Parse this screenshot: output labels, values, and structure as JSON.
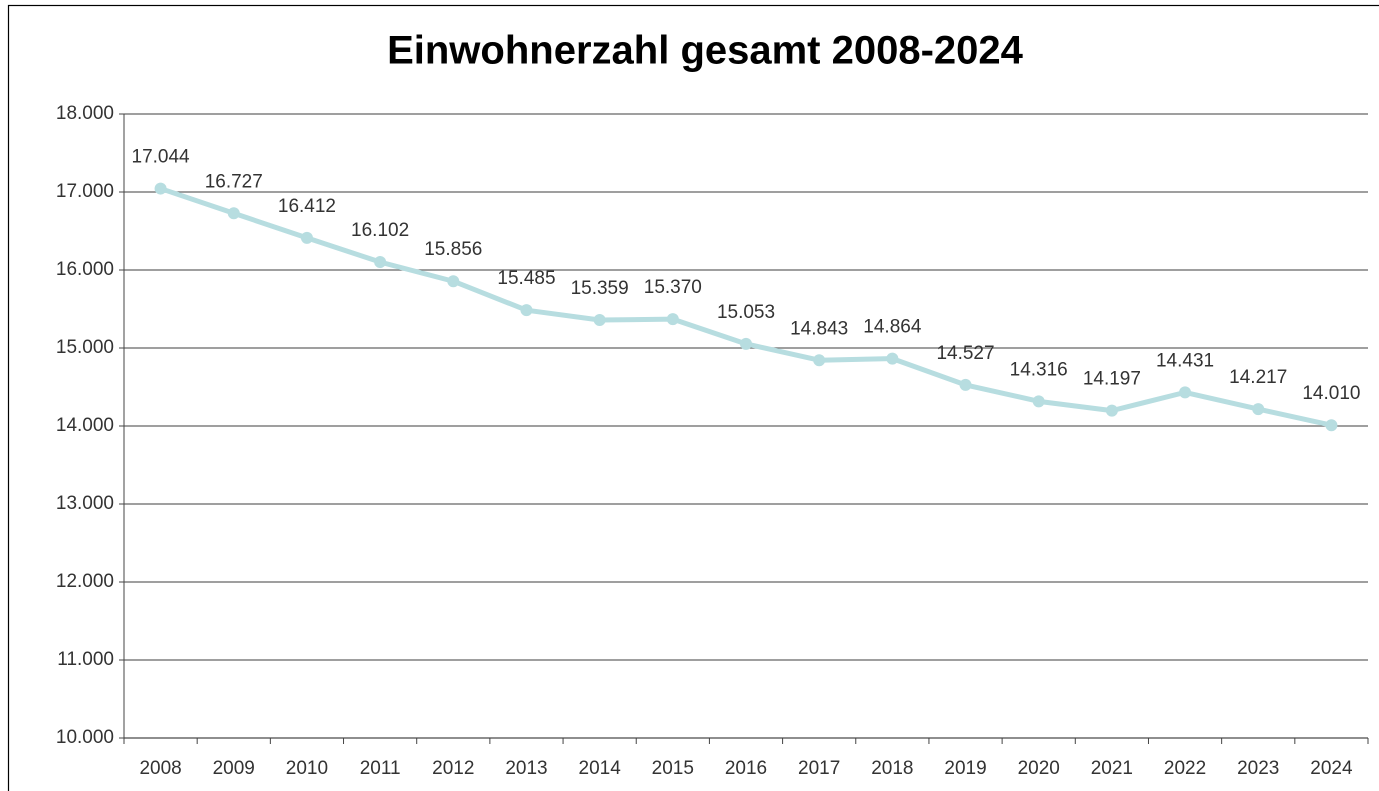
{
  "chart_data": {
    "type": "line",
    "title": "Einwohnerzahl gesamt 2008-2024",
    "categories": [
      "2008",
      "2009",
      "2010",
      "2011",
      "2012",
      "2013",
      "2014",
      "2015",
      "2016",
      "2017",
      "2018",
      "2019",
      "2020",
      "2021",
      "2022",
      "2023",
      "2024"
    ],
    "values": [
      17044,
      16727,
      16412,
      16102,
      15856,
      15485,
      15359,
      15370,
      15053,
      14843,
      14864,
      14527,
      14316,
      14197,
      14431,
      14217,
      14010
    ],
    "value_labels": [
      "17.044",
      "16.727",
      "16.412",
      "16.102",
      "15.856",
      "15.485",
      "15.359",
      "15.370",
      "15.053",
      "14.843",
      "14.864",
      "14.527",
      "14.316",
      "14.197",
      "14.431",
      "14.217",
      "14.010"
    ],
    "color": "#b7dde0",
    "ylim": [
      10000,
      18000
    ],
    "yticks": [
      {
        "value": 10000,
        "label": "10.000"
      },
      {
        "value": 11000,
        "label": "11.000"
      },
      {
        "value": 12000,
        "label": "12.000"
      },
      {
        "value": 13000,
        "label": "13.000"
      },
      {
        "value": 14000,
        "label": "14.000"
      },
      {
        "value": 15000,
        "label": "15.000"
      },
      {
        "value": 16000,
        "label": "16.000"
      },
      {
        "value": 17000,
        "label": "17.000"
      },
      {
        "value": 18000,
        "label": "18.000"
      }
    ],
    "grid": true
  }
}
